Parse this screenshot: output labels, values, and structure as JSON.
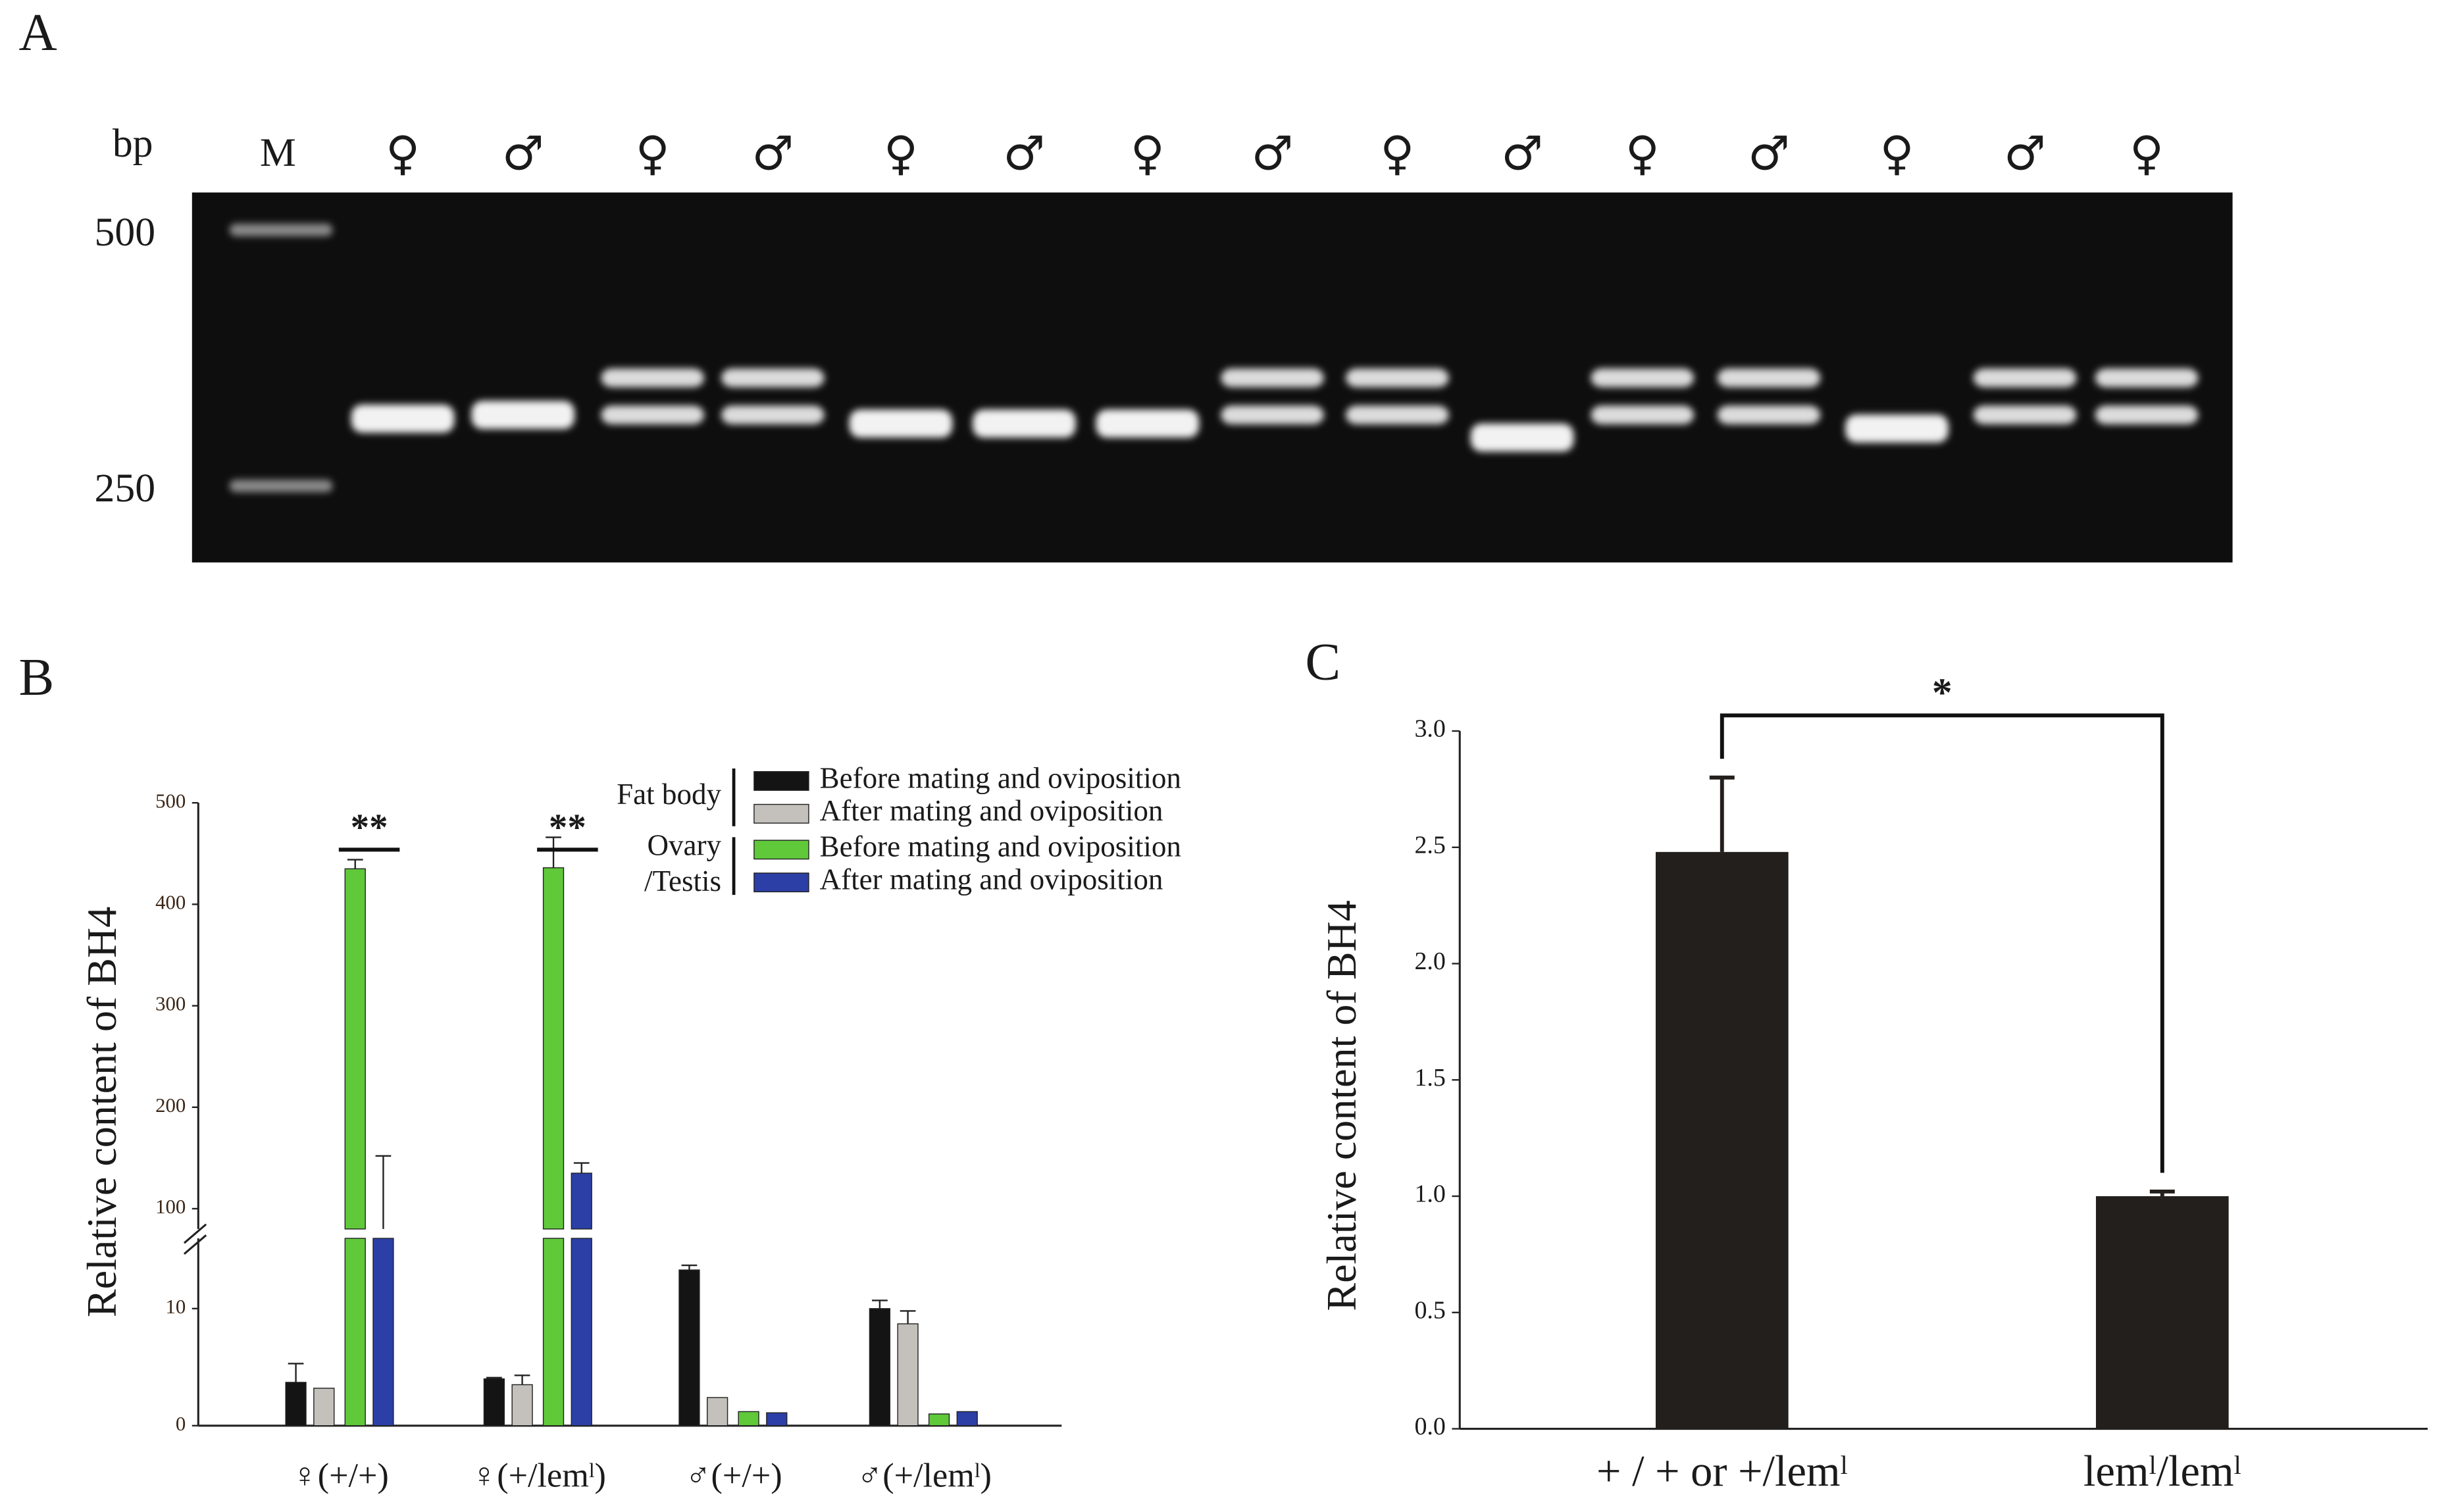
{
  "gel": {
    "panel": "A",
    "unit": "bp",
    "marker_label": "M",
    "markers": [
      500,
      250
    ],
    "lanes": [
      {
        "label": "♀",
        "bands": [
          300
        ]
      },
      {
        "label": "♂",
        "bands": [
          303
        ]
      },
      {
        "label": "♀",
        "bands": [
          335,
          303
        ]
      },
      {
        "label": "♂",
        "bands": [
          335,
          303
        ]
      },
      {
        "label": "♀",
        "bands": [
          296
        ]
      },
      {
        "label": "♂",
        "bands": [
          296
        ]
      },
      {
        "label": "♀",
        "bands": [
          296
        ]
      },
      {
        "label": "♂",
        "bands": [
          335,
          303
        ]
      },
      {
        "label": "♀",
        "bands": [
          335,
          303
        ]
      },
      {
        "label": "♂",
        "bands": [
          285
        ]
      },
      {
        "label": "♀",
        "bands": [
          335,
          303
        ]
      },
      {
        "label": "♂",
        "bands": [
          335,
          303
        ]
      },
      {
        "label": "♀",
        "bands": [
          292
        ]
      },
      {
        "label": "♂",
        "bands": [
          335,
          303
        ]
      },
      {
        "label": "♀",
        "bands": [
          335,
          303
        ]
      }
    ]
  },
  "chart_data": [
    {
      "type": "bar",
      "panel": "B",
      "y_label": "Relative content of  BH4",
      "categories": [
        "♀(+/+)",
        "♀(+/lemˡ)",
        "♂(+/+)",
        "♂(+/lemˡ)"
      ],
      "legend_groups": [
        [
          "Fat body"
        ],
        [
          "Ovary",
          "/Testis"
        ]
      ],
      "series": [
        {
          "name": "Before mating and oviposition",
          "color": "#141414",
          "values": [
            3.7,
            4.0,
            13.3,
            10.0
          ],
          "errors": [
            1.6,
            0.1,
            0.4,
            0.7
          ]
        },
        {
          "name": "After mating and oviposition",
          "color": "#c4c1bc",
          "values": [
            3.2,
            3.5,
            2.4,
            8.7
          ],
          "errors": [
            null,
            0.8,
            null,
            1.1
          ]
        },
        {
          "name": "Before mating and oviposition",
          "color": "#5fc93a",
          "values": [
            435,
            436,
            1.2,
            1.0
          ],
          "errors": [
            9,
            30,
            null,
            null
          ]
        },
        {
          "name": "After mating and oviposition",
          "color": "#2c3fa6",
          "values": [
            80,
            135,
            1.1,
            1.2
          ],
          "errors": [
            72,
            10,
            null,
            null
          ]
        }
      ],
      "significance": [
        "**",
        "**",
        null,
        null
      ],
      "ylim": [
        0,
        500
      ],
      "axis_break": [
        16,
        80
      ],
      "yticks": [
        0,
        10,
        100,
        200,
        300,
        400,
        500
      ]
    },
    {
      "type": "bar",
      "panel": "C",
      "y_label": "Relative content of  BH4",
      "categories": [
        "+ / + or +/lemˡ",
        "lemˡ/lemˡ"
      ],
      "values": [
        2.48,
        1.0
      ],
      "errors": [
        0.32,
        0.02
      ],
      "color": "#231f1c",
      "significance": "*",
      "ylim": [
        0,
        3.0
      ],
      "yticks": [
        {
          "value": 0,
          "label": "0.0"
        },
        {
          "value": 0.5,
          "label": "0.5"
        },
        {
          "value": 1.0,
          "label": "1.0"
        },
        {
          "value": 1.5,
          "label": "1.5"
        },
        {
          "value": 2.0,
          "label": "2.0"
        },
        {
          "value": 2.5,
          "label": "2.5"
        },
        {
          "value": 3.0,
          "label": "3.0"
        }
      ]
    }
  ]
}
